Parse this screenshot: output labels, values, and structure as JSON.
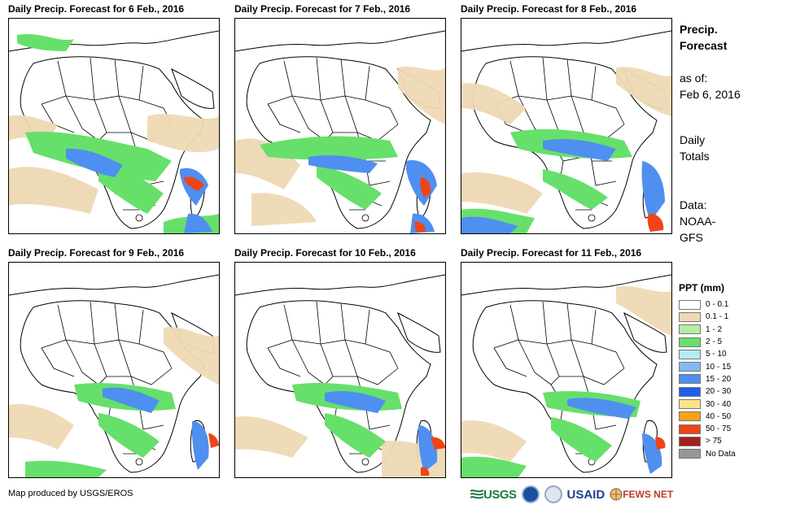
{
  "panels": [
    {
      "title": "Daily Precip. Forecast for 6 Feb., 2016"
    },
    {
      "title": "Daily Precip. Forecast for 7 Feb., 2016"
    },
    {
      "title": "Daily Precip. Forecast for 8 Feb., 2016"
    },
    {
      "title": "Daily Precip. Forecast for 9 Feb., 2016"
    },
    {
      "title": "Daily Precip. Forecast for 10 Feb., 2016"
    },
    {
      "title": "Daily Precip. Forecast for 11 Feb., 2016"
    }
  ],
  "side": {
    "heading_line1": "Precip.",
    "heading_line2": "Forecast",
    "asof_line1": "as of:",
    "asof_line2": "Feb 6, 2016",
    "totals_line1": "Daily",
    "totals_line2": "Totals",
    "data_line1": "Data:",
    "data_line2": "NOAA-",
    "data_line3": "GFS"
  },
  "legend": {
    "title": "PPT (mm)",
    "items": [
      {
        "label": "0 - 0.1",
        "color": "#ffffff"
      },
      {
        "label": "0.1 - 1",
        "color": "#efd9b4"
      },
      {
        "label": "1 - 2",
        "color": "#b4eda6"
      },
      {
        "label": "2 - 5",
        "color": "#66e06a"
      },
      {
        "label": "5 - 10",
        "color": "#b2ecf4"
      },
      {
        "label": "10 - 15",
        "color": "#85b9f1"
      },
      {
        "label": "15 - 20",
        "color": "#4f8ff0"
      },
      {
        "label": "20 - 30",
        "color": "#1f5fe8"
      },
      {
        "label": "30 - 40",
        "color": "#fde28a"
      },
      {
        "label": "40 - 50",
        "color": "#f7a218"
      },
      {
        "label": "50 - 75",
        "color": "#f04416"
      },
      {
        "label": "> 75",
        "color": "#a51d1d"
      },
      {
        "label": "No Data",
        "color": "#969696"
      }
    ]
  },
  "footer": {
    "credit": "Map produced by USGS/EROS",
    "logo_usgs": "USGS",
    "logo_usaid": "USAID",
    "logo_fews": "FEWS NET"
  }
}
